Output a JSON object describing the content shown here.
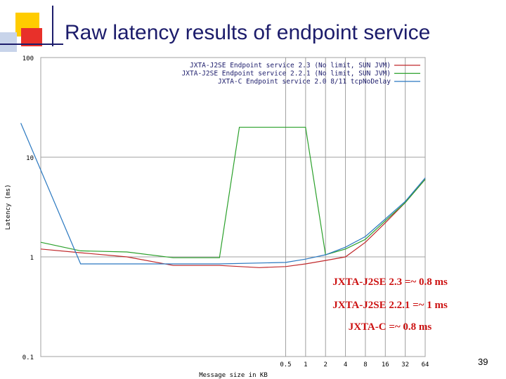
{
  "slide": {
    "title": "Raw latency results of endpoint service",
    "page_number": "39"
  },
  "colors": {
    "series_1": "#c0282a",
    "series_2": "#2aa02a",
    "series_3": "#2a78c0",
    "grid": "#a0a0a0",
    "annotation": "#cc1111",
    "title": "#1c1c6b"
  },
  "chart_data": {
    "type": "line",
    "title": "",
    "xlabel": "Message size in KB",
    "ylabel": "Latency (ms)",
    "yscale": "log",
    "ylim": [
      0.1,
      100
    ],
    "xlim": [
      0.0001,
      64
    ],
    "grid": true,
    "legend_position": "top-right",
    "y_ticks": [
      "100",
      "10",
      "1",
      "0.1"
    ],
    "x_ticks": [
      "0.5",
      "1",
      "2",
      "4",
      "8",
      "16",
      "32",
      "64"
    ],
    "series": [
      {
        "name": "JXTA-J2SE Endpoint service 2.3 (No limit, SUN JVM)",
        "x": [
          0.0001,
          0.0004,
          0.002,
          0.01,
          0.05,
          0.2,
          0.5,
          1,
          2,
          4,
          8,
          16,
          32,
          64
        ],
        "y": [
          1.2,
          1.1,
          1.0,
          0.82,
          0.82,
          0.78,
          0.8,
          0.85,
          0.92,
          1.0,
          1.4,
          2.2,
          3.5,
          6.0
        ]
      },
      {
        "name": "JXTA-J2SE Endpoint service 2.2.1 (No limit, SUN JVM)",
        "x": [
          0.0001,
          0.0004,
          0.002,
          0.01,
          0.05,
          0.1,
          0.5,
          1,
          2,
          4,
          8,
          16,
          32,
          64
        ],
        "y": [
          1.4,
          1.15,
          1.12,
          0.98,
          0.98,
          20.0,
          20.0,
          20.0,
          1.05,
          1.2,
          1.5,
          2.3,
          3.5,
          6.0
        ]
      },
      {
        "name": "JXTA-C Endpoint service 2.0 8/11 tcpNoDelay",
        "x": [
          5e-05,
          0.0004,
          0.002,
          0.01,
          0.05,
          0.5,
          1,
          2,
          4,
          8,
          16,
          32,
          64
        ],
        "y": [
          22.0,
          0.85,
          0.85,
          0.85,
          0.85,
          0.88,
          0.95,
          1.05,
          1.25,
          1.6,
          2.4,
          3.6,
          6.2
        ]
      }
    ],
    "annotations": [
      "JXTA-J2SE 2.3 =~ 0.8 ms",
      "JXTA-J2SE 2.2.1 =~ 1 ms",
      "JXTA-C =~ 0.8 ms"
    ]
  }
}
